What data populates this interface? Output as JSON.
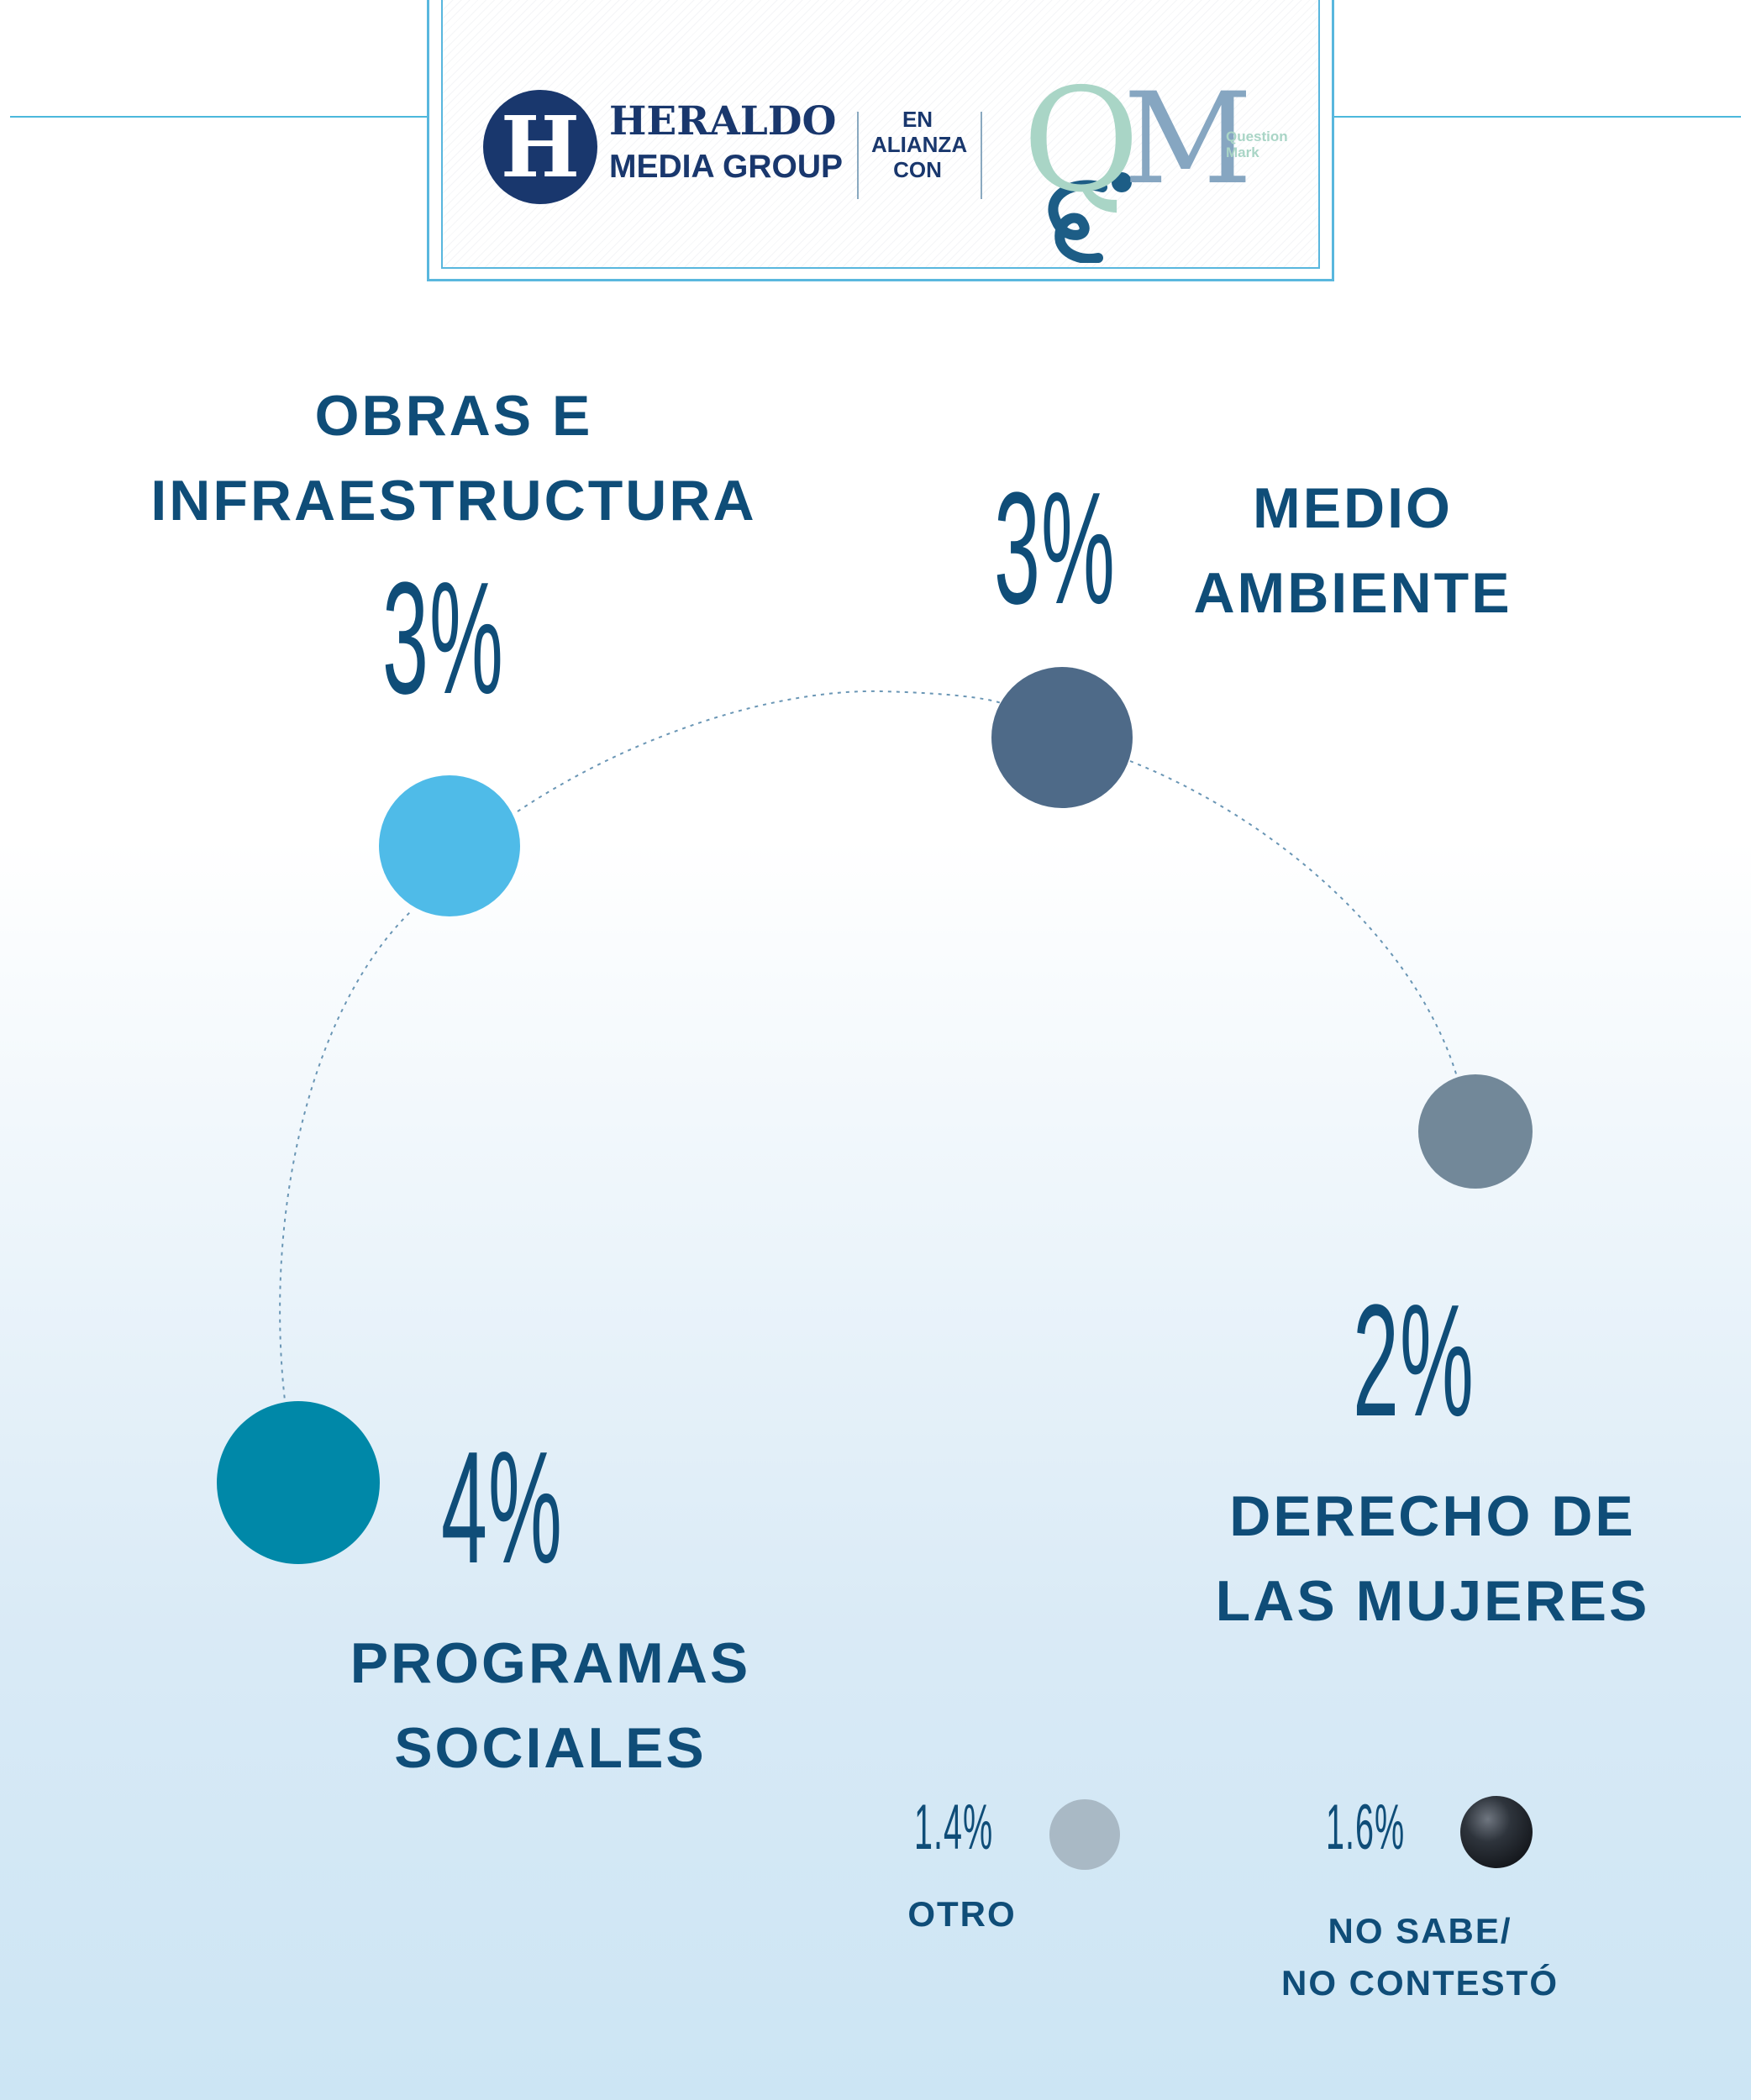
{
  "header": {
    "logo_letter": "H",
    "brand_line1": "HERALDO",
    "brand_line2": "MEDIA GROUP",
    "alliance_text": "EN\nALIANZA\nCON",
    "partner_logo_letters": "QM",
    "partner_name": "Question\nMark"
  },
  "colors": {
    "text": "#0f4d78",
    "line": "#4cb8dc",
    "programas_sociales": "#0088a8",
    "obras_infraestructura": "#4fbbe8",
    "medio_ambiente": "#4e6a88",
    "derecho_mujeres": "#728899",
    "otro": "#a9b9c5",
    "no_sabe": "#2b3038"
  },
  "chart_data": {
    "type": "bubble-arc",
    "unit": "%",
    "points": [
      {
        "label": "PROGRAMAS\nSOCIALES",
        "value": 4,
        "display": "4%"
      },
      {
        "label": "OBRAS E\nINFRAESTRUCTURA",
        "value": 3,
        "display": "3%"
      },
      {
        "label": "MEDIO\nAMBIENTE",
        "value": 3,
        "display": "3%"
      },
      {
        "label": "DERECHO DE\nLAS MUJERES",
        "value": 2,
        "display": "2%"
      },
      {
        "label": "OTRO",
        "value": 1.4,
        "display": "1.4%"
      },
      {
        "label": "NO SABE/\nNO CONTESTÓ",
        "value": 1.6,
        "display": "1.6%"
      }
    ]
  }
}
